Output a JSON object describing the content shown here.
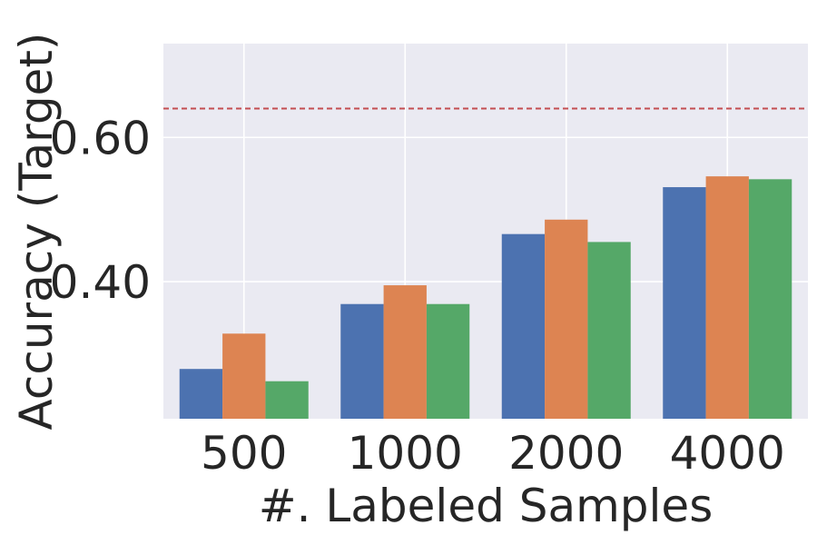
{
  "chart_data": {
    "type": "bar",
    "title": "",
    "xlabel": "#. Labeled Samples",
    "ylabel": "Accuracy (Target)",
    "categories": [
      "500",
      "1000",
      "2000",
      "4000"
    ],
    "series": [
      {
        "values": [
          0.279,
          0.369,
          0.466,
          0.531
        ],
        "color": "#4c72b0"
      },
      {
        "values": [
          0.328,
          0.395,
          0.486,
          0.546
        ],
        "color": "#dd8452"
      },
      {
        "values": [
          0.262,
          0.369,
          0.455,
          0.542
        ],
        "color": "#55a868"
      }
    ],
    "ylim": [
      0.21,
      0.73
    ],
    "yticks": [
      0.4,
      0.6
    ],
    "ytick_labels": [
      "0.40",
      "0.60"
    ],
    "reference_line": {
      "y": 0.64,
      "color": "#c44e52",
      "style": "dashed"
    },
    "grid": true,
    "background": "#eaeaf2",
    "legend": "none"
  }
}
